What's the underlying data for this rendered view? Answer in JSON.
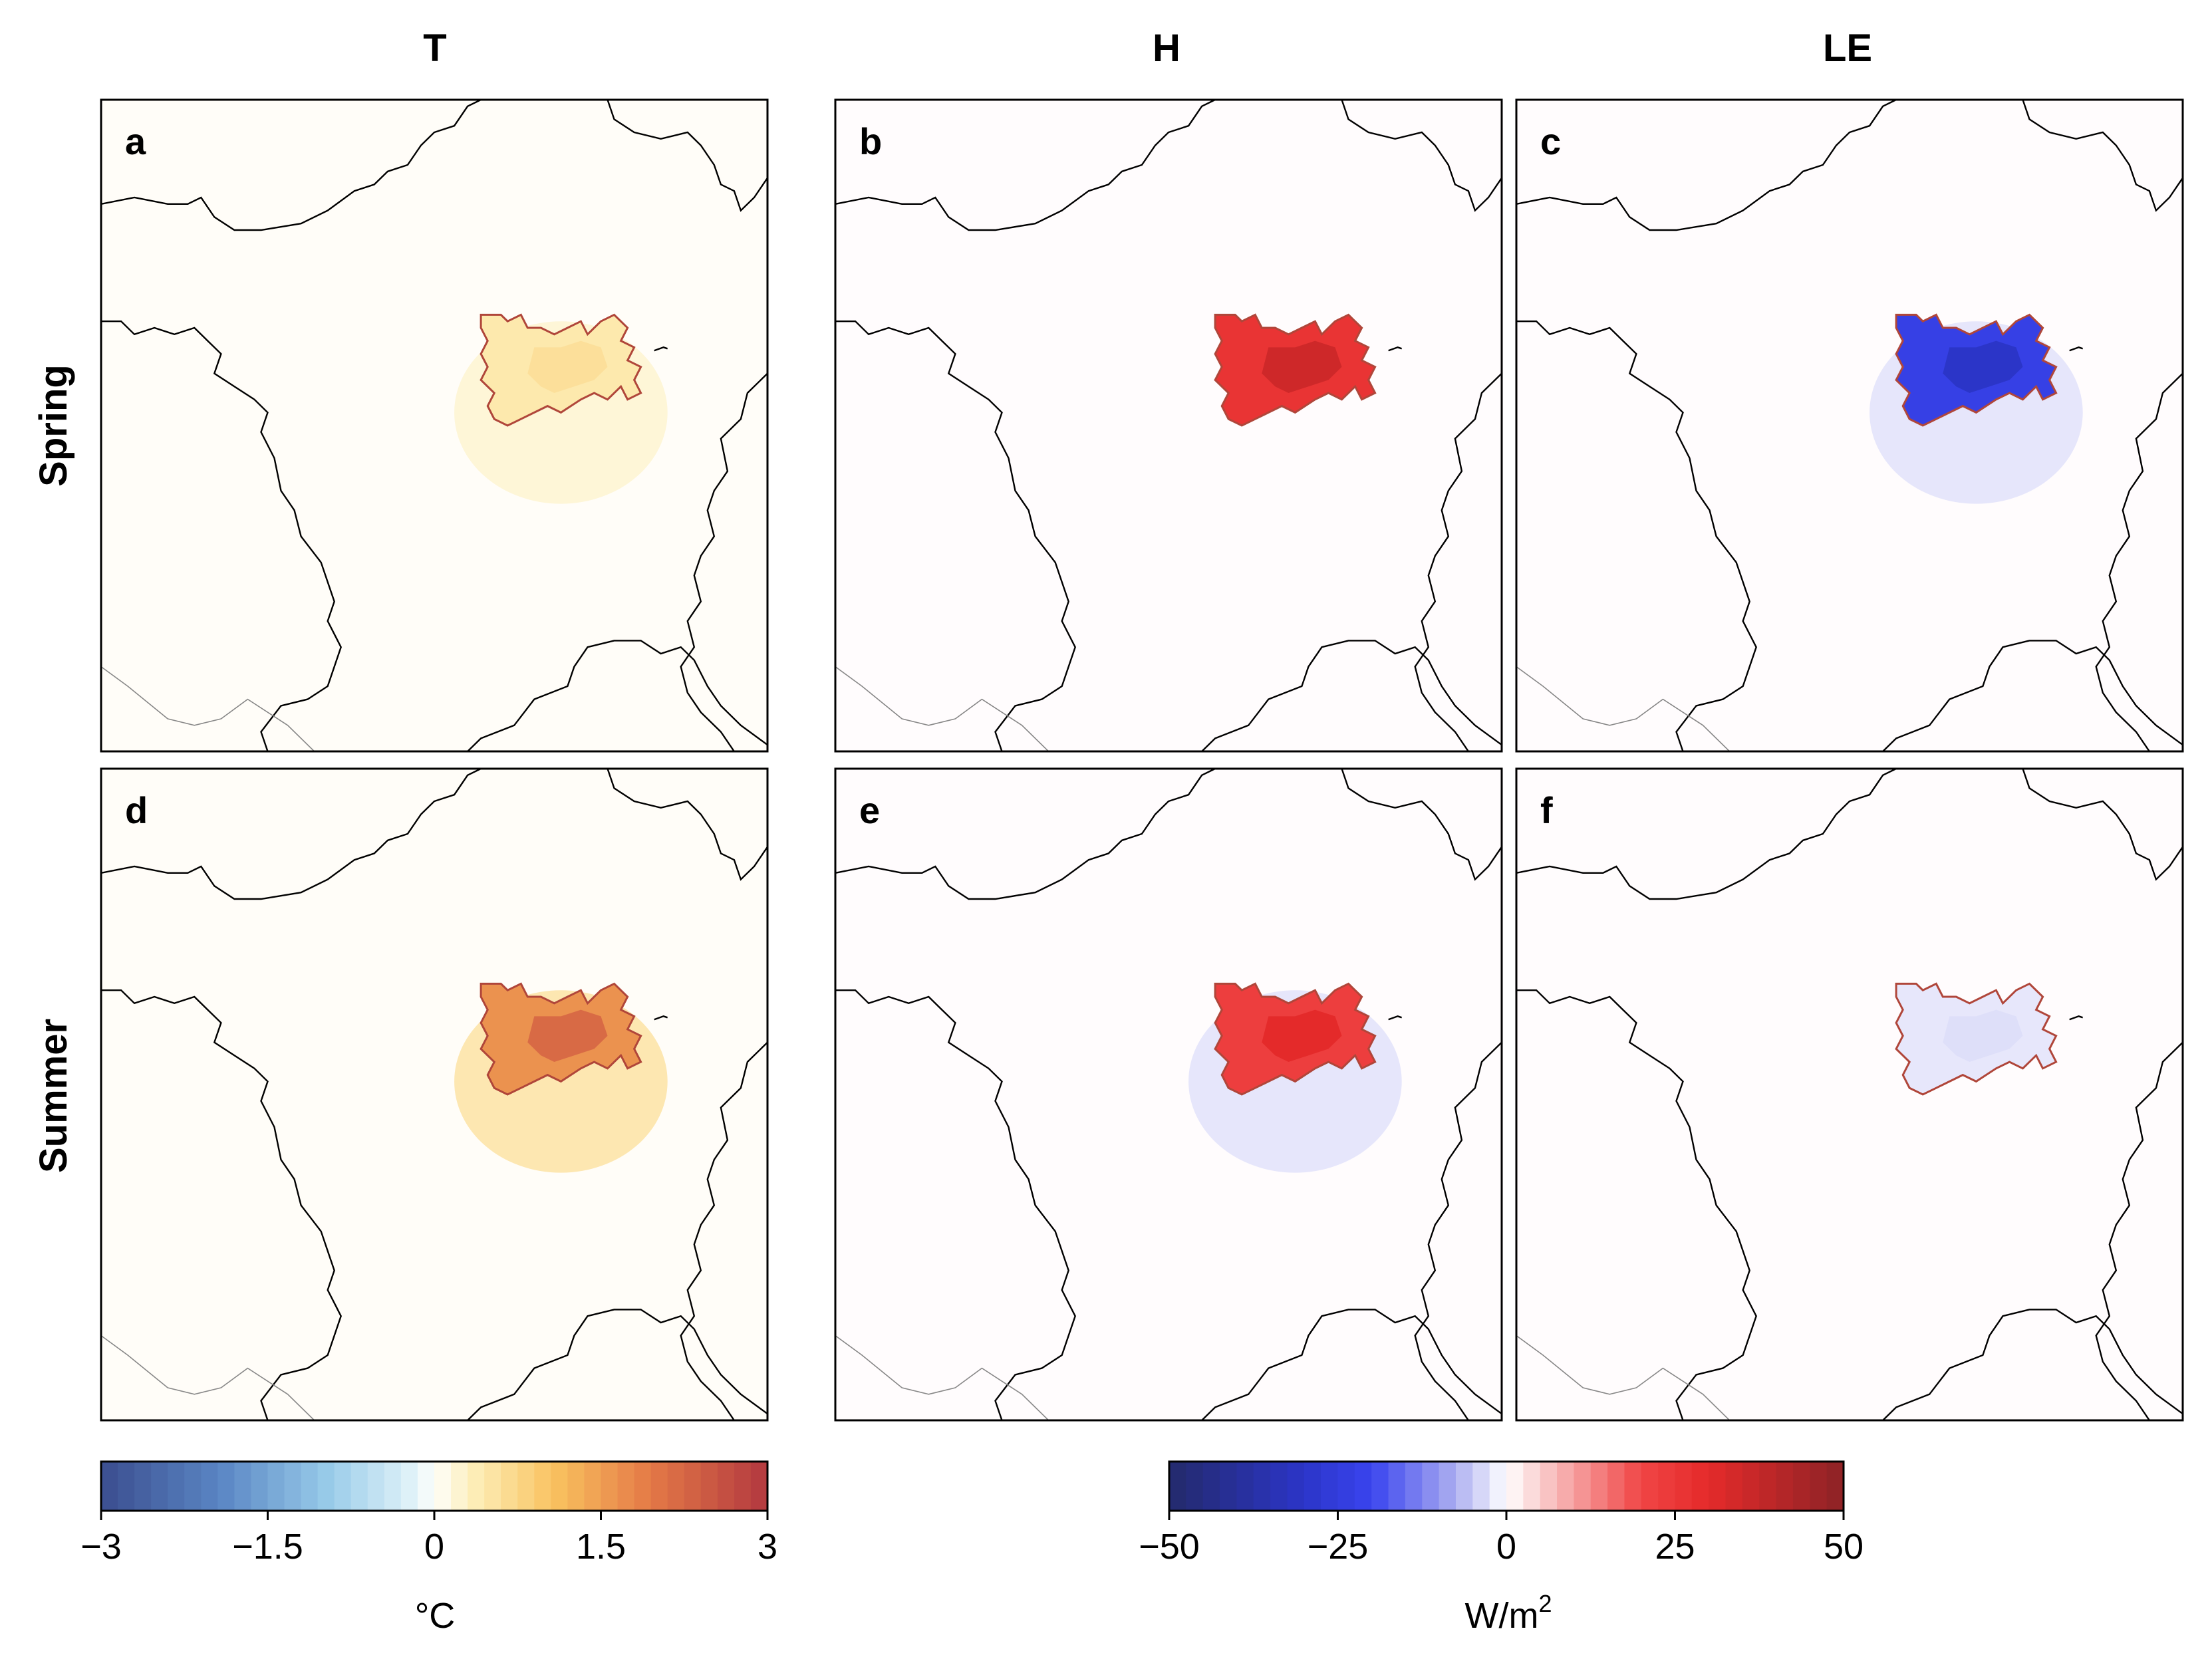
{
  "chart_data": {
    "type": "heatmap",
    "description_layout": "2x3 grid of map panels",
    "column_titles": [
      "T",
      "H",
      "LE"
    ],
    "row_titles": [
      "Spring",
      "Summer"
    ],
    "panels": [
      {
        "label": "a",
        "row": "Spring",
        "variable": "T",
        "anomaly_peak": 0.6,
        "anomaly_halo": 0.25,
        "colormap": "temp"
      },
      {
        "label": "b",
        "row": "Spring",
        "variable": "H",
        "anomaly_peak": 35,
        "anomaly_halo": 0,
        "colormap": "flux"
      },
      {
        "label": "c",
        "row": "Spring",
        "variable": "LE",
        "anomaly_peak": -30,
        "anomaly_halo": -3,
        "colormap": "flux"
      },
      {
        "label": "d",
        "row": "Summer",
        "variable": "T",
        "anomaly_peak": 2.2,
        "anomaly_halo": 0.6,
        "colormap": "temp"
      },
      {
        "label": "e",
        "row": "Summer",
        "variable": "H",
        "anomaly_peak": 30,
        "anomaly_halo": -3,
        "colormap": "flux"
      },
      {
        "label": "f",
        "row": "Summer",
        "variable": "LE",
        "anomaly_peak": -3,
        "anomaly_halo": 0,
        "colormap": "flux"
      }
    ],
    "colorbars": [
      {
        "id": "temp",
        "ticks": [
          "−3",
          "−1.5",
          "0",
          "1.5",
          "3"
        ],
        "range": [
          -3,
          3
        ],
        "label": "°C",
        "levels": 40
      },
      {
        "id": "flux",
        "ticks": [
          "−50",
          "−25",
          "0",
          "25",
          "50"
        ],
        "range": [
          -50,
          50
        ],
        "label_base": "W/m",
        "label_sup": "2",
        "levels": 40
      }
    ],
    "colors": {
      "outline": "#b0463a",
      "coast": "#000000",
      "border": "#888888",
      "temp_neg": "#3b4d8f",
      "temp_pos": "#b3383f",
      "flux_neg": "#232a6b",
      "flux_pos": "#8c2226"
    }
  }
}
